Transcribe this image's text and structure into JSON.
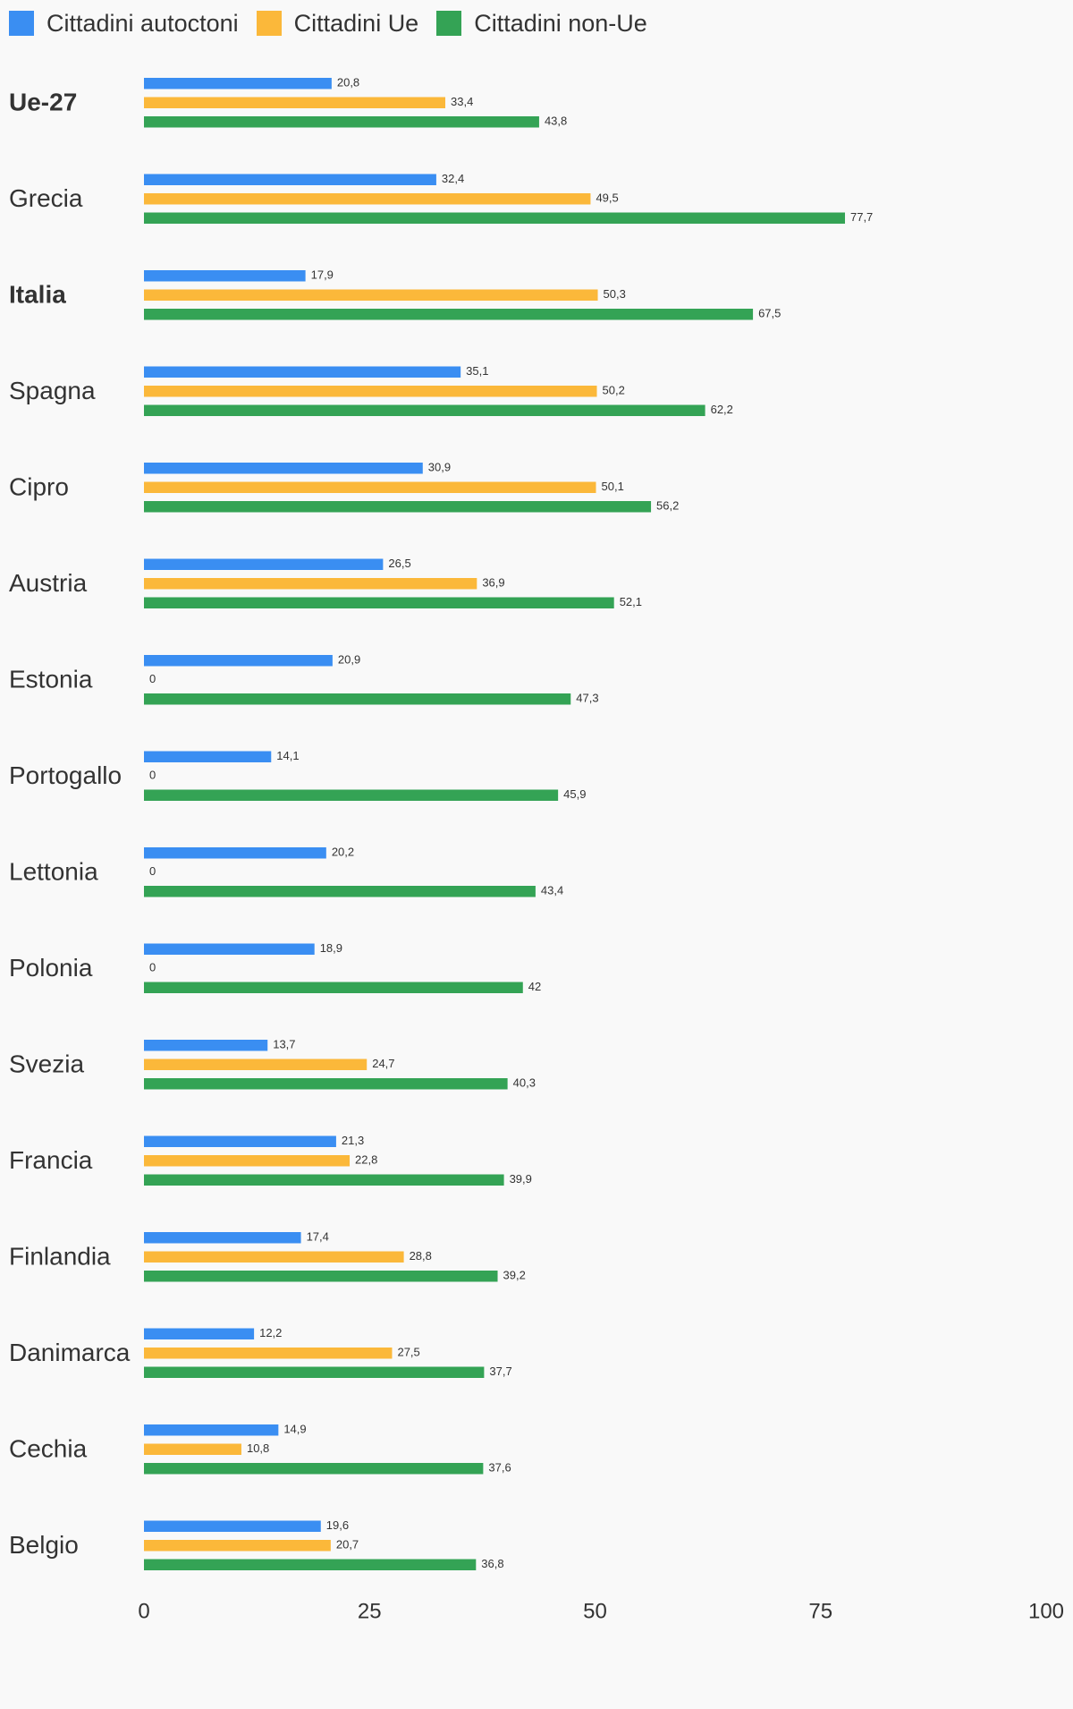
{
  "chart_data": {
    "type": "bar",
    "orientation": "horizontal",
    "title": "",
    "xlabel": "",
    "ylabel": "",
    "xlim": [
      0,
      100
    ],
    "x_ticks": [
      "0",
      "25",
      "50",
      "75",
      "100"
    ],
    "legend_position": "top-left",
    "grid": false,
    "categories": [
      "Ue-27",
      "Grecia",
      "Italia",
      "Spagna",
      "Cipro",
      "Austria",
      "Estonia",
      "Portogallo",
      "Lettonia",
      "Polonia",
      "Svezia",
      "Francia",
      "Finlandia",
      "Danimarca",
      "Cechia",
      "Belgio"
    ],
    "bold_categories": [
      "Ue-27",
      "Italia"
    ],
    "series": [
      {
        "name": "Cittadini autoctoni",
        "color": "#3a8ef2",
        "values": [
          20.8,
          32.4,
          17.9,
          35.1,
          30.9,
          26.5,
          20.9,
          14.1,
          20.2,
          18.9,
          13.7,
          21.3,
          17.4,
          12.2,
          14.9,
          19.6
        ],
        "labels": [
          "20,8",
          "32,4",
          "17,9",
          "35,1",
          "30,9",
          "26,5",
          "20,9",
          "14,1",
          "20,2",
          "18,9",
          "13,7",
          "21,3",
          "17,4",
          "12,2",
          "14,9",
          "19,6"
        ]
      },
      {
        "name": "Cittadini Ue",
        "color": "#fbb83a",
        "values": [
          33.4,
          49.5,
          50.3,
          50.2,
          50.1,
          36.9,
          0,
          0,
          0,
          0,
          24.7,
          22.8,
          28.8,
          27.5,
          10.8,
          20.7
        ],
        "labels": [
          "33,4",
          "49,5",
          "50,3",
          "50,2",
          "50,1",
          "36,9",
          "0",
          "0",
          "0",
          "0",
          "24,7",
          "22,8",
          "28,8",
          "27,5",
          "10,8",
          "20,7"
        ]
      },
      {
        "name": "Cittadini non-Ue",
        "color": "#34a355",
        "values": [
          43.8,
          77.7,
          67.5,
          62.2,
          56.2,
          52.1,
          47.3,
          45.9,
          43.4,
          42,
          40.3,
          39.9,
          39.2,
          37.7,
          37.6,
          36.8
        ],
        "labels": [
          "43,8",
          "77,7",
          "67,5",
          "62,2",
          "56,2",
          "52,1",
          "47,3",
          "45,9",
          "43,4",
          "42",
          "40,3",
          "39,9",
          "39,2",
          "37,7",
          "37,6",
          "36,8"
        ]
      }
    ]
  }
}
